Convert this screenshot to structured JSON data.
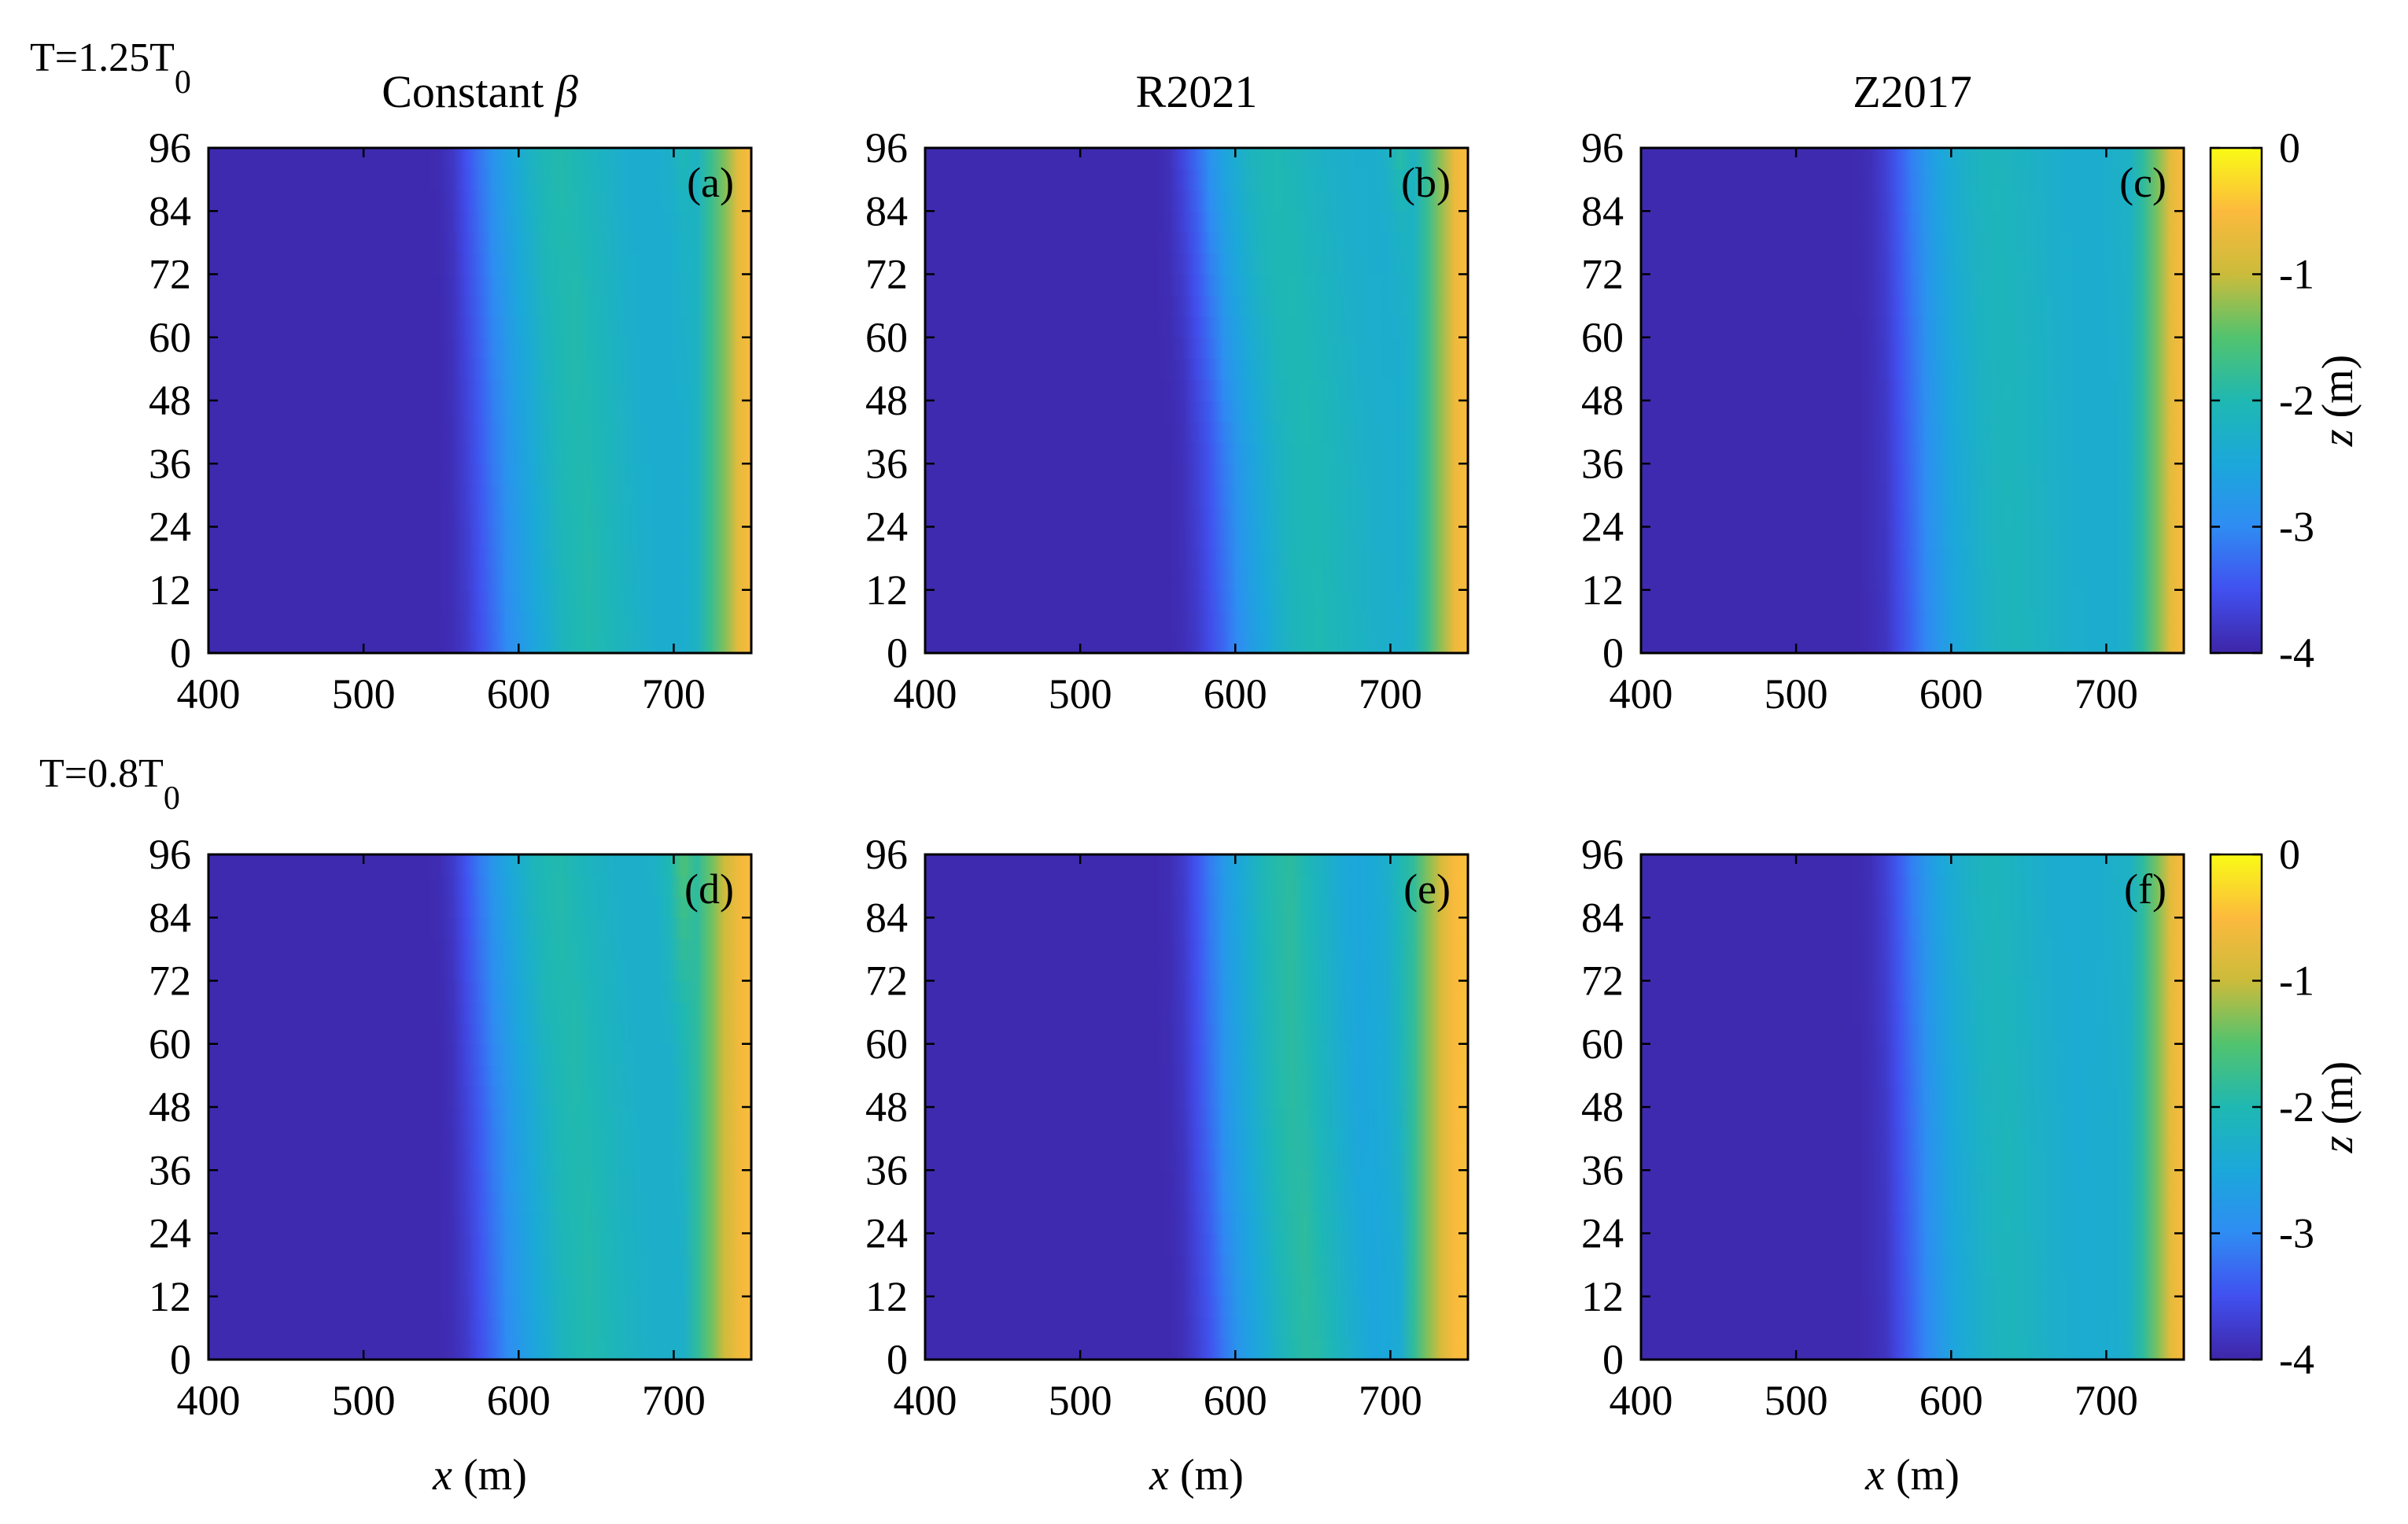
{
  "figure": {
    "rows": [
      {
        "label_main": "T=1.25T",
        "label_sub": "0"
      },
      {
        "label_main": "T=0.8T",
        "label_sub": "0"
      }
    ],
    "column_titles": [
      "Constant ",
      "R2021",
      "Z2017"
    ],
    "column_title_symbol": "β",
    "xlabel_var": "x",
    "xlabel_unit": " (m)",
    "colorbar_label_var": "z",
    "colorbar_label_unit": " (m)",
    "colormap": [
      "#3e26a8",
      "#4150ef",
      "#2f8cf3",
      "#1ba8da",
      "#1fb8b2",
      "#52c36e",
      "#cbbb3b",
      "#fcba3d",
      "#f9fb15"
    ]
  },
  "chart_data": [
    {
      "type": "heatmap",
      "panel_label": "(a)",
      "row": 0,
      "col": 0,
      "xlim": [
        400,
        750
      ],
      "ylim": [
        0,
        96
      ],
      "x_ticks": [
        400,
        500,
        600,
        700
      ],
      "y_ticks": [
        0,
        12,
        24,
        36,
        48,
        60,
        72,
        84,
        96
      ],
      "z_range": [
        -4,
        0
      ],
      "profile_x": [
        400,
        550,
        560,
        575,
        590,
        605,
        625,
        640,
        660,
        680,
        705,
        715,
        725,
        735,
        742,
        750
      ],
      "profile_z": [
        -3.95,
        -3.95,
        -3.85,
        -3.4,
        -2.9,
        -2.5,
        -2.05,
        -1.95,
        -2.15,
        -2.35,
        -2.35,
        -2.2,
        -1.7,
        -1.2,
        -0.7,
        -0.5
      ],
      "crest_shift": [
        [
          0,
          8
        ],
        [
          48,
          0
        ],
        [
          96,
          -12
        ]
      ]
    },
    {
      "type": "heatmap",
      "panel_label": "(b)",
      "row": 0,
      "col": 1,
      "xlim": [
        400,
        750
      ],
      "ylim": [
        0,
        96
      ],
      "x_ticks": [
        400,
        500,
        600,
        700
      ],
      "y_ticks": [
        0,
        12,
        24,
        36,
        48,
        60,
        72,
        84,
        96
      ],
      "z_range": [
        -4,
        0
      ],
      "profile_x": [
        400,
        555,
        565,
        580,
        595,
        610,
        625,
        640,
        660,
        680,
        705,
        715,
        725,
        735,
        742,
        750
      ],
      "profile_z": [
        -3.95,
        -3.95,
        -3.85,
        -3.4,
        -2.8,
        -2.4,
        -2.1,
        -2.0,
        -2.15,
        -2.3,
        -2.35,
        -2.2,
        -1.7,
        -1.1,
        -0.6,
        -0.5
      ],
      "crest_shift": [
        [
          0,
          14
        ],
        [
          40,
          8
        ],
        [
          96,
          -15
        ]
      ]
    },
    {
      "type": "heatmap",
      "panel_label": "(c)",
      "row": 0,
      "col": 2,
      "xlim": [
        400,
        750
      ],
      "ylim": [
        0,
        96
      ],
      "x_ticks": [
        400,
        500,
        600,
        700
      ],
      "y_ticks": [
        0,
        12,
        24,
        36,
        48,
        60,
        72,
        84,
        96
      ],
      "z_range": [
        -4,
        0
      ],
      "profile_x": [
        400,
        540,
        555,
        570,
        585,
        600,
        620,
        635,
        655,
        680,
        705,
        715,
        725,
        735,
        742,
        750
      ],
      "profile_z": [
        -3.95,
        -3.95,
        -3.85,
        -3.4,
        -2.9,
        -2.5,
        -2.2,
        -2.1,
        -2.2,
        -2.35,
        -2.35,
        -2.25,
        -1.8,
        -1.2,
        -0.7,
        -0.5
      ],
      "crest_shift": [
        [
          0,
          5
        ],
        [
          48,
          0
        ],
        [
          96,
          -8
        ]
      ]
    },
    {
      "type": "heatmap",
      "panel_label": "(d)",
      "row": 1,
      "col": 0,
      "xlim": [
        400,
        750
      ],
      "ylim": [
        0,
        96
      ],
      "x_ticks": [
        400,
        500,
        600,
        700
      ],
      "y_ticks": [
        0,
        12,
        24,
        36,
        48,
        60,
        72,
        84,
        96
      ],
      "z_range": [
        -4,
        0
      ],
      "profile_x": [
        400,
        550,
        560,
        575,
        590,
        605,
        625,
        640,
        660,
        680,
        700,
        712,
        722,
        732,
        742,
        750
      ],
      "profile_z": [
        -3.95,
        -3.95,
        -3.85,
        -3.4,
        -2.9,
        -2.5,
        -2.05,
        -1.95,
        -2.15,
        -2.3,
        -2.3,
        -2.0,
        -1.5,
        -1.0,
        -0.6,
        -0.5
      ],
      "crest_shift": [
        [
          0,
          8
        ],
        [
          48,
          0
        ],
        [
          96,
          -15
        ]
      ]
    },
    {
      "type": "heatmap",
      "panel_label": "(e)",
      "row": 1,
      "col": 1,
      "xlim": [
        400,
        750
      ],
      "ylim": [
        0,
        96
      ],
      "x_ticks": [
        400,
        500,
        600,
        700
      ],
      "y_ticks": [
        0,
        12,
        24,
        36,
        48,
        60,
        72,
        84,
        96
      ],
      "z_range": [
        -4,
        0
      ],
      "profile_x": [
        400,
        555,
        565,
        580,
        595,
        610,
        625,
        640,
        660,
        680,
        700,
        712,
        722,
        732,
        742,
        750
      ],
      "profile_z": [
        -3.95,
        -3.95,
        -3.85,
        -3.4,
        -2.8,
        -2.4,
        -2.0,
        -1.85,
        -2.2,
        -2.55,
        -2.4,
        -2.0,
        -1.4,
        -0.9,
        -0.5,
        -0.45
      ],
      "crest_shift": [
        [
          0,
          10
        ],
        [
          48,
          0
        ],
        [
          96,
          -5
        ]
      ]
    },
    {
      "type": "heatmap",
      "panel_label": "(f)",
      "row": 1,
      "col": 2,
      "xlim": [
        400,
        750
      ],
      "ylim": [
        0,
        96
      ],
      "x_ticks": [
        400,
        500,
        600,
        700
      ],
      "y_ticks": [
        0,
        12,
        24,
        36,
        48,
        60,
        72,
        84,
        96
      ],
      "z_range": [
        -4,
        0
      ],
      "profile_x": [
        400,
        540,
        555,
        570,
        585,
        600,
        620,
        635,
        655,
        680,
        705,
        715,
        725,
        735,
        742,
        750
      ],
      "profile_z": [
        -3.95,
        -3.95,
        -3.85,
        -3.4,
        -2.9,
        -2.5,
        -2.2,
        -2.1,
        -2.25,
        -2.4,
        -2.35,
        -2.25,
        -1.8,
        -1.2,
        -0.7,
        -0.5
      ],
      "crest_shift": [
        [
          0,
          5
        ],
        [
          48,
          0
        ],
        [
          96,
          -8
        ]
      ]
    }
  ],
  "colorbars": [
    {
      "row": 0,
      "ticks": [
        0,
        -1,
        -2,
        -3,
        -4
      ],
      "range": [
        -4,
        0
      ]
    },
    {
      "row": 1,
      "ticks": [
        0,
        -1,
        -2,
        -3,
        -4
      ],
      "range": [
        -4,
        0
      ]
    }
  ]
}
